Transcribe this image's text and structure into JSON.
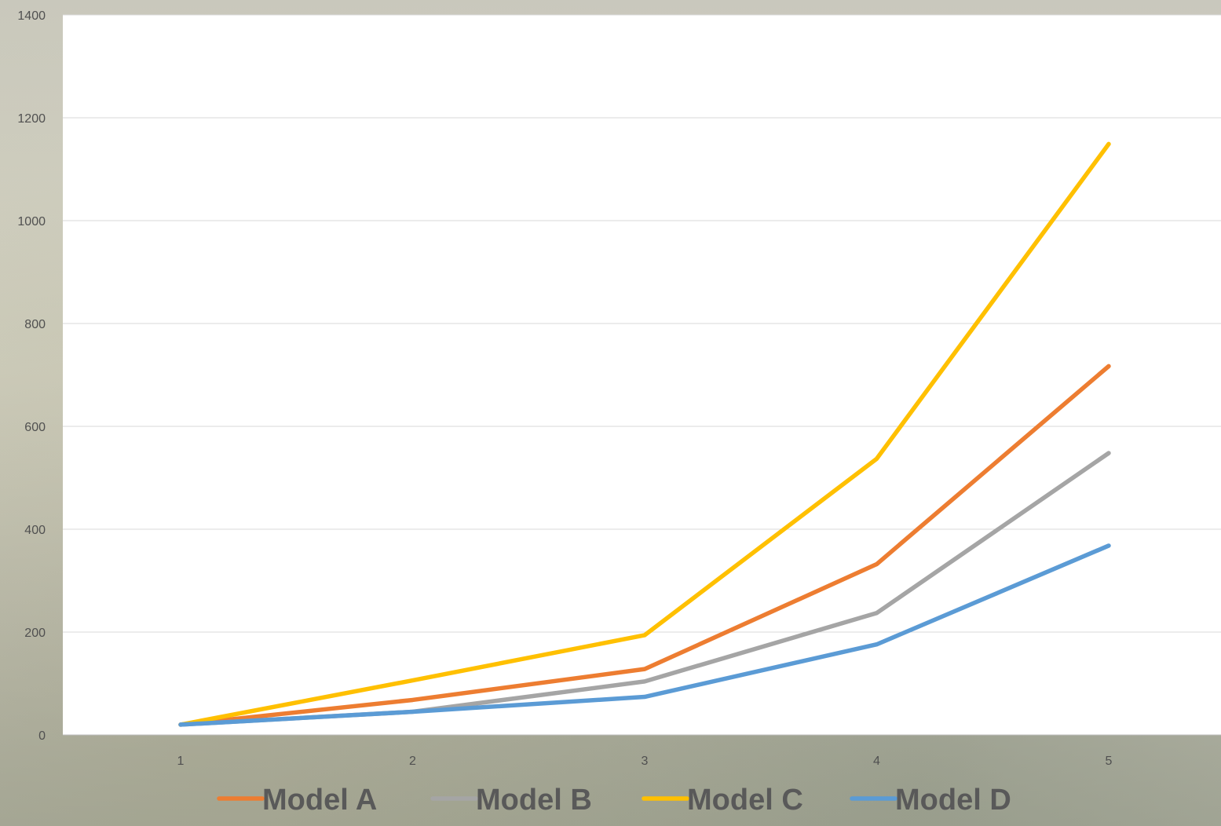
{
  "chart_data": {
    "type": "line",
    "title": "",
    "xlabel": "",
    "ylabel": "",
    "categories": [
      "1",
      "2",
      "3",
      "4",
      "5"
    ],
    "ylim": [
      0,
      1400
    ],
    "yticks": [
      "0",
      "200",
      "400",
      "600",
      "800",
      "1000",
      "1200",
      "1400"
    ],
    "grid": "horizontal",
    "legend_position": "bottom",
    "series": [
      {
        "name": "Model A",
        "color": "#ED7D31",
        "values": [
          20,
          68,
          128,
          332,
          717
        ]
      },
      {
        "name": "Model B",
        "color": "#A5A5A5",
        "values": [
          20,
          45,
          104,
          237,
          548
        ]
      },
      {
        "name": "Model C",
        "color": "#FFC000",
        "values": [
          20,
          106,
          194,
          537,
          1149
        ]
      },
      {
        "name": "Model D",
        "color": "#5B9BD5",
        "values": [
          20,
          45,
          74,
          176,
          368
        ]
      }
    ]
  }
}
